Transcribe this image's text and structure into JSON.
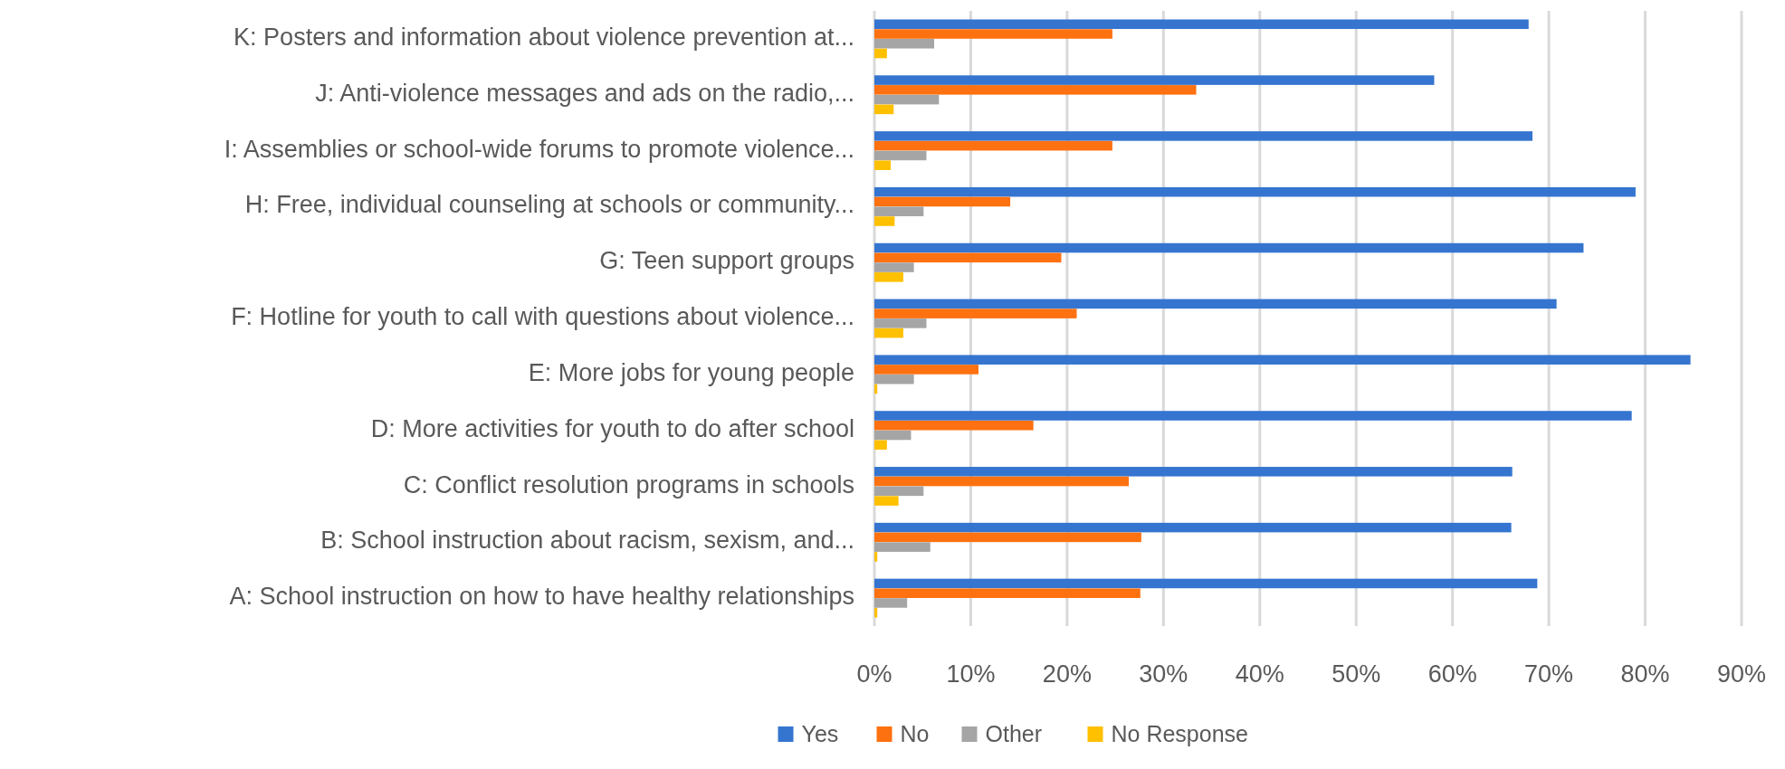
{
  "chart_data": {
    "type": "bar",
    "orientation": "horizontal",
    "categories": [
      "K: Posters and information about violence prevention at...",
      "J: Anti-violence messages and ads on the radio,...",
      "I: Assemblies or school-wide forums to promote violence...",
      "H: Free, individual counseling at schools or community...",
      "G: Teen support groups",
      "F: Hotline for youth to call with questions about violence...",
      "E: More jobs for young people",
      "D: More activities for youth to do after school",
      "C: Conflict resolution programs in schools",
      "B: School instruction about racism, sexism, and...",
      "A: School instruction on how to have healthy relationships"
    ],
    "series": [
      {
        "name": "Yes",
        "color": "#3575d0",
        "values": [
          67.9,
          58.1,
          68.3,
          79.0,
          73.6,
          70.8,
          84.7,
          78.6,
          66.2,
          66.1,
          68.8
        ]
      },
      {
        "name": "No",
        "color": "#fd7110",
        "values": [
          24.7,
          33.4,
          24.7,
          14.1,
          19.4,
          21.0,
          10.8,
          16.5,
          26.4,
          27.7,
          27.6
        ]
      },
      {
        "name": "Other",
        "color": "#a5a5a5",
        "values": [
          6.2,
          6.7,
          5.4,
          5.1,
          4.1,
          5.4,
          4.1,
          3.8,
          5.1,
          5.8,
          3.4
        ]
      },
      {
        "name": "No Response",
        "color": "#ffc000",
        "values": [
          1.3,
          2.0,
          1.7,
          2.1,
          3.0,
          3.0,
          0.3,
          1.3,
          2.5,
          0.3,
          0.3
        ]
      }
    ],
    "xlim": [
      0,
      90
    ],
    "xticks": [
      {
        "value": 0,
        "label": "0%"
      },
      {
        "value": 10,
        "label": "10%"
      },
      {
        "value": 20,
        "label": "20%"
      },
      {
        "value": 30,
        "label": "30%"
      },
      {
        "value": 40,
        "label": "40%"
      },
      {
        "value": 50,
        "label": "50%"
      },
      {
        "value": 60,
        "label": "60%"
      },
      {
        "value": 70,
        "label": "70%"
      },
      {
        "value": 80,
        "label": "80%"
      },
      {
        "value": 90,
        "label": "90%"
      }
    ],
    "grid": "x",
    "legend": "bottom"
  }
}
